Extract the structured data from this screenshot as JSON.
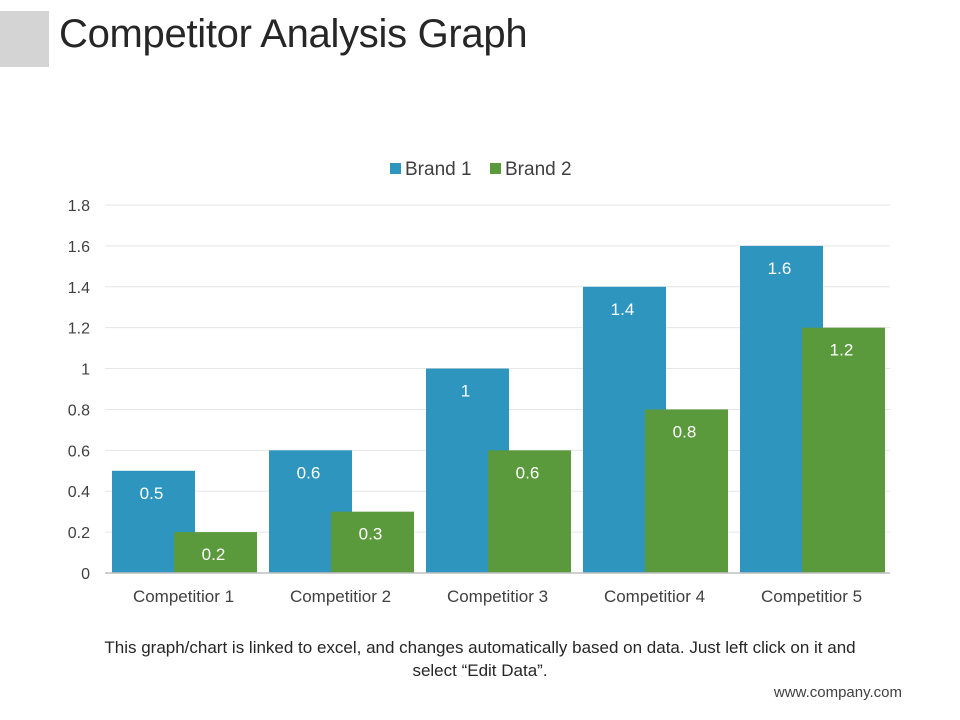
{
  "page": {
    "title": "Competitor Analysis Graph",
    "caption": "This graph/chart is linked to excel, and changes automatically based on data. Just left click on it and select “Edit Data”.",
    "footer": "www.company.com"
  },
  "colors": {
    "brand1": "#2e95be",
    "brand2": "#5a9a3c",
    "title_block": "#d4d4d4"
  },
  "chart_data": {
    "type": "bar",
    "title": "",
    "categories": [
      "Competitior 1",
      "Competitior 2",
      "Competitior 3",
      "Competitior 4",
      "Competitior 5"
    ],
    "series": [
      {
        "name": "Brand 1",
        "values": [
          0.5,
          0.6,
          1,
          1.4,
          1.6
        ]
      },
      {
        "name": "Brand 2",
        "values": [
          0.2,
          0.3,
          0.6,
          0.8,
          1.2
        ]
      }
    ],
    "ylim": [
      0,
      1.8
    ],
    "yticks": [
      0,
      0.2,
      0.4,
      0.6,
      0.8,
      1,
      1.2,
      1.4,
      1.6,
      1.8
    ],
    "xlabel": "",
    "ylabel": "",
    "legend_position": "top-center",
    "grid": true
  }
}
